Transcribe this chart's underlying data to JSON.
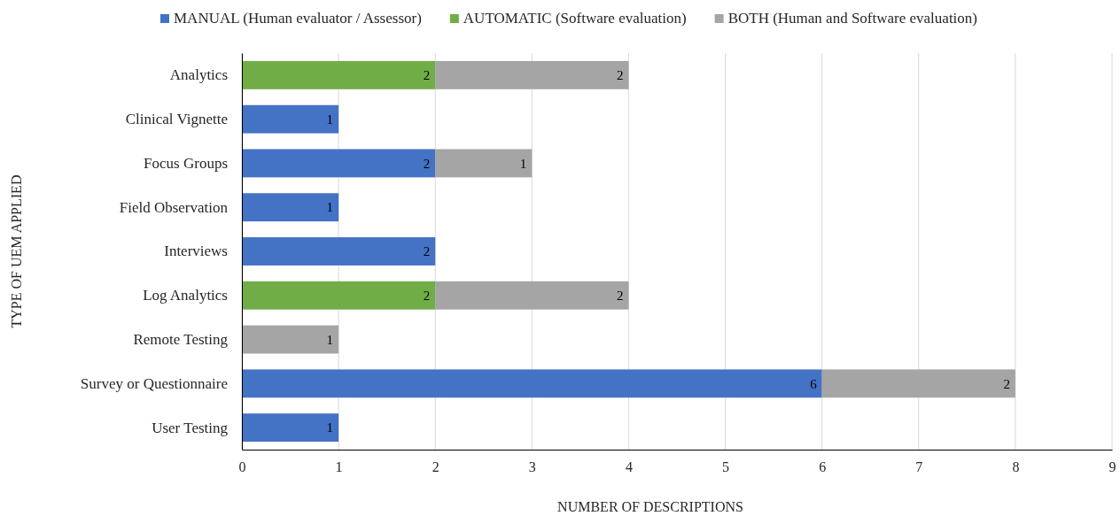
{
  "chart_data": {
    "type": "bar",
    "orientation": "horizontal",
    "stacked": true,
    "xlabel": "NUMBER OF DESCRIPTIONS",
    "ylabel": "TYPE OF UEM APPLIED",
    "categories": [
      "Analytics",
      "Clinical Vignette",
      "Focus Groups",
      "Field Observation",
      "Interviews",
      "Log Analytics",
      "Remote Testing",
      "Survey or Questionnaire",
      "User Testing"
    ],
    "series": [
      {
        "name": "MANUAL (Human evaluator / Assessor)",
        "color": "#4472c4",
        "values": [
          null,
          1,
          2,
          1,
          2,
          null,
          null,
          6,
          1
        ]
      },
      {
        "name": "AUTOMATIC (Software evaluation)",
        "color": "#70ad47",
        "values": [
          2,
          null,
          null,
          null,
          null,
          2,
          null,
          null,
          null
        ]
      },
      {
        "name": "BOTH (Human and Software evaluation)",
        "color": "#a5a5a5",
        "values": [
          2,
          null,
          1,
          null,
          null,
          2,
          1,
          2,
          null
        ]
      }
    ],
    "xlim": [
      0,
      9
    ],
    "xticks": [
      0,
      1,
      2,
      3,
      4,
      5,
      6,
      7,
      8,
      9
    ],
    "grid": "x",
    "legend": "top",
    "data_labels": true
  }
}
